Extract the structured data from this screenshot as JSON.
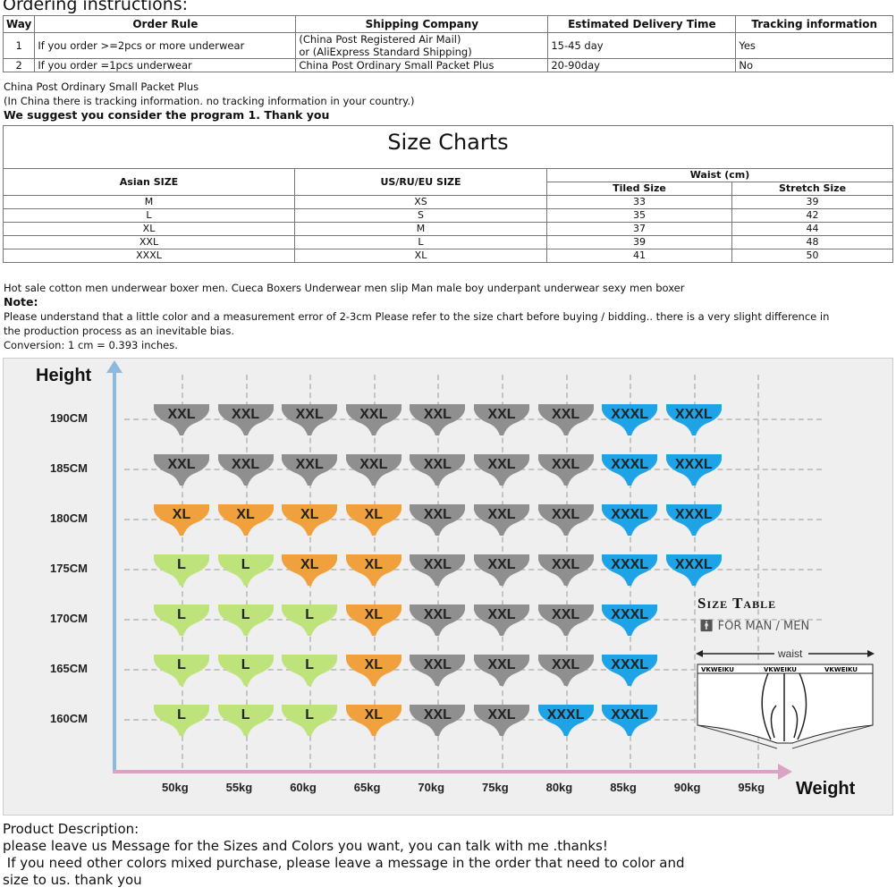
{
  "ordering": {
    "title": "Ordering instructions:",
    "headers": [
      "Way",
      "Order Rule",
      "Shipping Company",
      "Estimated Delivery Time",
      "Tracking information"
    ],
    "rows": [
      [
        "1",
        "If you order >=2pcs or more underwear",
        "(China Post Registered Air Mail)",
        "or (AliExpress Standard Shipping)",
        "15-45 day",
        "Yes"
      ],
      [
        "2",
        "If you order =1pcs underwear",
        "China Post Ordinary Small Packet Plus",
        "",
        "20-90day",
        "No"
      ]
    ],
    "note1": "China Post Ordinary Small Packet Plus",
    "note2": "(In China there is tracking information. no tracking information in your country.)",
    "note3": "We suggest you consider the program 1. Thank you"
  },
  "sizechart": {
    "title": "Size Charts",
    "h_asian": "Asian SIZE",
    "h_us": "US/RU/EU SIZE",
    "h_waist": "Waist (cm)",
    "h_tiled": "Tiled Size",
    "h_stretch": "Stretch Size",
    "rows": [
      [
        "M",
        "XS",
        "33",
        "39"
      ],
      [
        "L",
        "S",
        "35",
        "42"
      ],
      [
        "XL",
        "M",
        "37",
        "44"
      ],
      [
        "XXL",
        "L",
        "39",
        "48"
      ],
      [
        "XXXL",
        "XL",
        "41",
        "50"
      ]
    ]
  },
  "desc": {
    "line1": "Hot sale cotton men underwear boxer men. Cueca Boxers Underwear men slip Man male boy underpant underwear sexy men boxer",
    "note_label": "Note:",
    "note_a": "Please understand that a little color and a measurement error of 2-3cm Please refer to the size chart before buying / bidding.. there is a very slight difference in",
    "note_b": "the production process as an inevitable bias.",
    "conversion": "Conversion: 1 cm = 0.393 inches."
  },
  "grid": {
    "y_title": "Height",
    "x_title": "Weight",
    "heights": [
      "190CM",
      "185CM",
      "180CM",
      "175CM",
      "170CM",
      "165CM",
      "160CM"
    ],
    "weights": [
      "50kg",
      "55kg",
      "60kg",
      "65kg",
      "70kg",
      "75kg",
      "80kg",
      "85kg",
      "90kg",
      "95kg"
    ],
    "cells": [
      [
        "XXL",
        "XXL",
        "XXL",
        "XXL",
        "XXL",
        "XXL",
        "XXL",
        "XXXL",
        "XXXL"
      ],
      [
        "XXL",
        "XXL",
        "XXL",
        "XXL",
        "XXL",
        "XXL",
        "XXL",
        "XXXL",
        "XXXL"
      ],
      [
        "XL",
        "XL",
        "XL",
        "XL",
        "XXL",
        "XXL",
        "XXL",
        "XXXL",
        "XXXL"
      ],
      [
        "L",
        "L",
        "XL",
        "XL",
        "XXL",
        "XXL",
        "XXL",
        "XXXL",
        "XXXL"
      ],
      [
        "L",
        "L",
        "L",
        "XL",
        "XXL",
        "XXL",
        "XXL",
        "XXXL"
      ],
      [
        "L",
        "L",
        "L",
        "XL",
        "XXL",
        "XXL",
        "XXL",
        "XXXL"
      ],
      [
        "L",
        "L",
        "L",
        "XL",
        "XXL",
        "XXL",
        "XXXL",
        "XXXL"
      ]
    ],
    "colors": {
      "L": "#bde37a",
      "XL": "#f0a13d",
      "XXL": "#8f8f8f",
      "XXXL": "#1ea3e6"
    },
    "size_table_title": "Size Table",
    "for_label": "FOR MAN / MEN",
    "waist_label": "waist",
    "brand": "VKWEIKU"
  },
  "product": {
    "title": "Product Description:",
    "l1": "please leave us Message for the Sizes and Colors you want, you can talk with me .thanks!",
    "l2": " If you need other colors mixed purchase, please leave a message in the order that need to color and",
    "l3": "size to us. thank you"
  }
}
